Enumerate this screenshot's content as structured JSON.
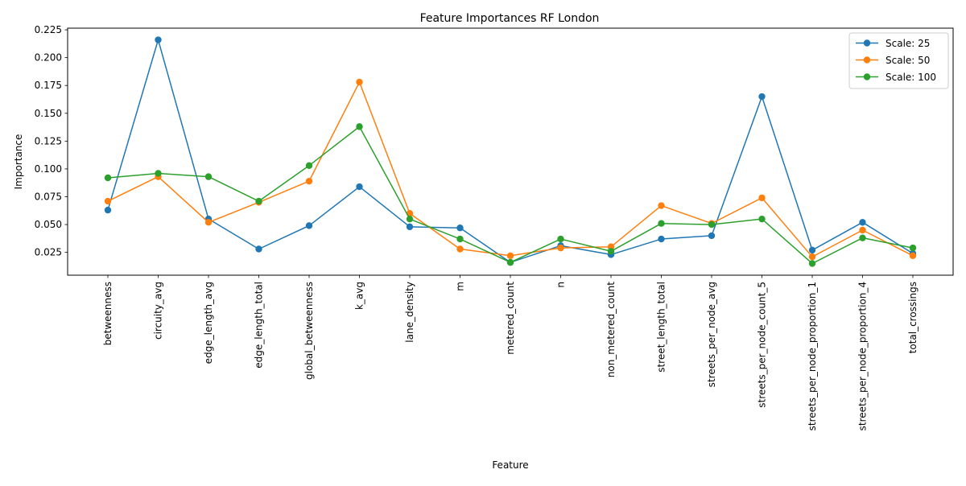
{
  "chart_data": {
    "type": "line",
    "title": "Feature Importances RF London",
    "xlabel": "Feature",
    "ylabel": "Importance",
    "categories": [
      "betweenness",
      "circuity_avg",
      "edge_length_avg",
      "edge_length_total",
      "global_betweenness",
      "k_avg",
      "lane_density",
      "m",
      "metered_count",
      "n",
      "non_metered_count",
      "street_length_total",
      "streets_per_node_avg",
      "streets_per_node_count_5",
      "streets_per_node_proportion_1",
      "streets_per_node_proportion_4",
      "total_crossings"
    ],
    "ylim": [
      0.0045,
      0.2265
    ],
    "yticks": [
      0.025,
      0.05,
      0.075,
      0.1,
      0.125,
      0.15,
      0.175,
      0.2,
      0.225
    ],
    "ytick_labels": [
      "0.025",
      "0.050",
      "0.075",
      "0.100",
      "0.125",
      "0.150",
      "0.175",
      "0.200",
      "0.225"
    ],
    "grid": false,
    "legend_position": "top-right",
    "series": [
      {
        "name": "Scale: 25",
        "color": "#1f77b4",
        "values": [
          0.063,
          0.216,
          0.055,
          0.028,
          0.049,
          0.084,
          0.048,
          0.047,
          0.016,
          0.031,
          0.023,
          0.037,
          0.04,
          0.165,
          0.027,
          0.052,
          0.024
        ]
      },
      {
        "name": "Scale: 50",
        "color": "#ff7f0e",
        "values": [
          0.071,
          0.093,
          0.052,
          0.07,
          0.089,
          0.178,
          0.06,
          0.028,
          0.022,
          0.029,
          0.03,
          0.067,
          0.051,
          0.074,
          0.021,
          0.045,
          0.022
        ]
      },
      {
        "name": "Scale: 100",
        "color": "#2ca02c",
        "values": [
          0.092,
          0.096,
          0.093,
          0.071,
          0.103,
          0.138,
          0.055,
          0.037,
          0.016,
          0.037,
          0.026,
          0.051,
          0.05,
          0.055,
          0.015,
          0.038,
          0.029
        ]
      }
    ]
  }
}
